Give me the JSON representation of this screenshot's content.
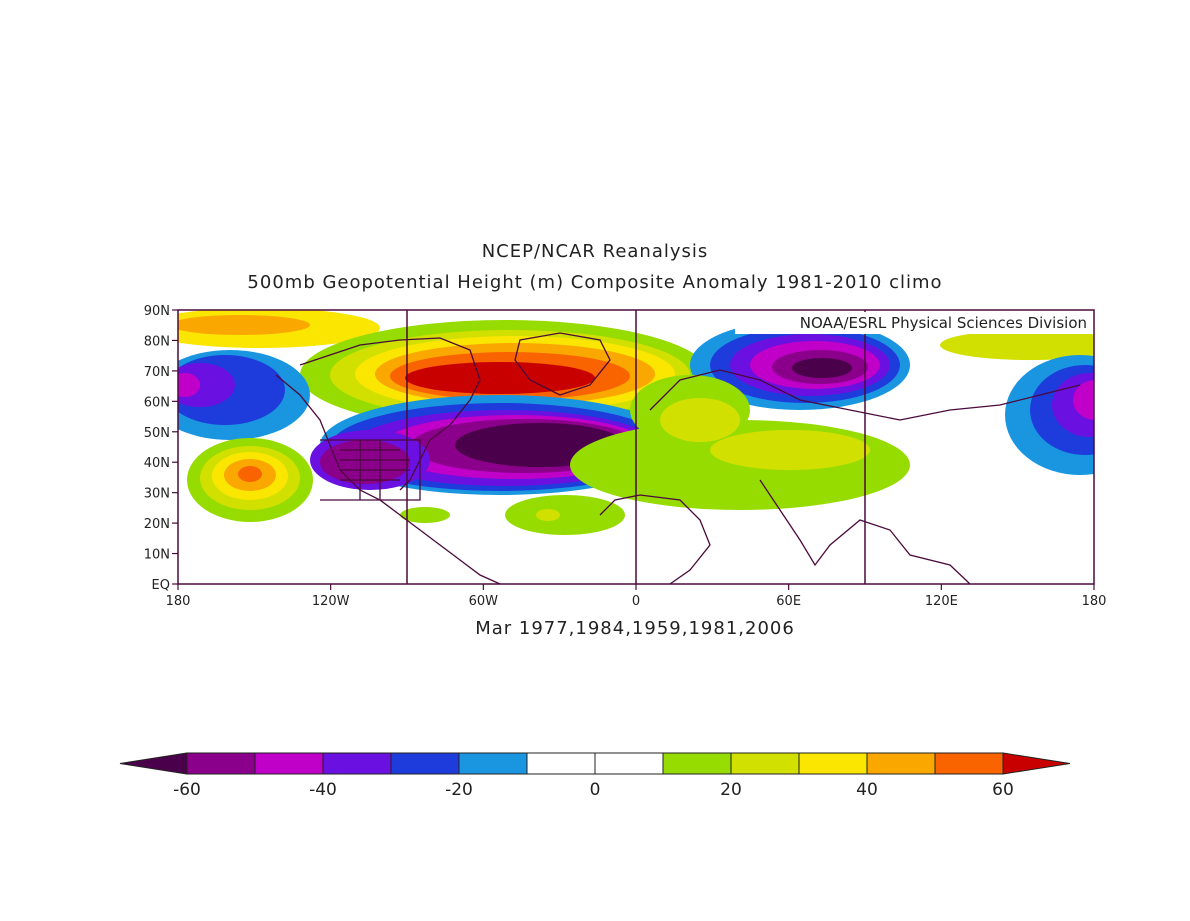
{
  "titles": {
    "line1": "NCEP/NCAR Reanalysis",
    "line2": "500mb Geopotential Height (m) Composite Anomaly 1981-2010 climo",
    "dates": "Mar 1977,1984,1959,1981,2006",
    "credit": "NOAA/ESRL Physical Sciences Division"
  },
  "axes": {
    "lat_labels": [
      "EQ",
      "10N",
      "20N",
      "30N",
      "40N",
      "50N",
      "60N",
      "70N",
      "80N",
      "90N"
    ],
    "lon_labels": [
      "180",
      "120W",
      "60W",
      "0",
      "60E",
      "120E",
      "180"
    ]
  },
  "colorbar": {
    "labels": [
      "-60",
      "-40",
      "-20",
      "0",
      "20",
      "40",
      "60"
    ],
    "colors": [
      "#8b008b",
      "#c000c8",
      "#6a10e0",
      "#1e3cdc",
      "#1a96e0",
      "#ffffff",
      "#ffffff",
      "#96dc00",
      "#d2e000",
      "#fae600",
      "#faa800",
      "#fa6400"
    ],
    "low_arrow_color": "#4a004a",
    "high_arrow_color": "#c80000"
  },
  "map_colors": {
    "neg_light": "#1a96e0",
    "neg_blue": "#1e3cdc",
    "neg_violet": "#6a10e0",
    "neg_magenta": "#c000c8",
    "neg_purple": "#8b008b",
    "neg_dark": "#4a004a",
    "pos_green": "#96dc00",
    "pos_lime": "#d2e000",
    "pos_yellow": "#fae600",
    "pos_orange": "#faa800",
    "pos_redorange": "#fa6400",
    "pos_red": "#c80000",
    "coast": "#4a0a3c"
  }
}
